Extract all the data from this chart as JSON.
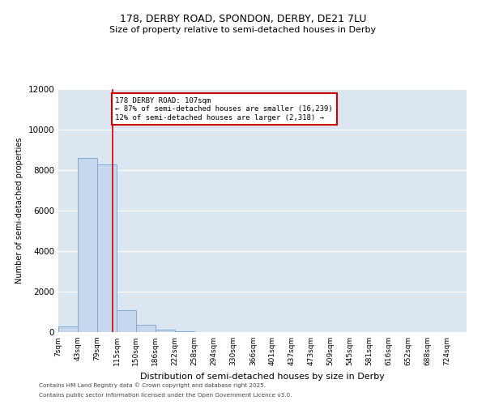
{
  "title1": "178, DERBY ROAD, SPONDON, DERBY, DE21 7LU",
  "title2": "Size of property relative to semi-detached houses in Derby",
  "xlabel": "Distribution of semi-detached houses by size in Derby",
  "ylabel": "Number of semi-detached properties",
  "footer1": "Contains HM Land Registry data © Crown copyright and database right 2025.",
  "footer2": "Contains public sector information licensed under the Open Government Licence v3.0.",
  "annotation_line1": "178 DERBY ROAD: 107sqm",
  "annotation_line2": "← 87% of semi-detached houses are smaller (16,239)",
  "annotation_line3": "12% of semi-detached houses are larger (2,318) →",
  "property_size": 107,
  "bin_labels": [
    "7sqm",
    "43sqm",
    "79sqm",
    "115sqm",
    "150sqm",
    "186sqm",
    "222sqm",
    "258sqm",
    "294sqm",
    "330sqm",
    "366sqm",
    "401sqm",
    "437sqm",
    "473sqm",
    "509sqm",
    "545sqm",
    "581sqm",
    "616sqm",
    "652sqm",
    "688sqm",
    "724sqm"
  ],
  "bin_edges": [
    7,
    43,
    79,
    115,
    150,
    186,
    222,
    258,
    294,
    330,
    366,
    401,
    437,
    473,
    509,
    545,
    581,
    616,
    652,
    688,
    724,
    760
  ],
  "bar_values": [
    300,
    8600,
    8300,
    1100,
    350,
    120,
    40,
    5,
    0,
    0,
    0,
    0,
    0,
    0,
    0,
    0,
    0,
    0,
    0,
    0,
    0
  ],
  "bar_color": "#c5d8ed",
  "bar_edge_color": "#7aadd4",
  "red_line_color": "#cc0000",
  "annotation_box_color": "#cc0000",
  "background_color": "#dce6f0",
  "ylim": [
    0,
    12000
  ],
  "yticks": [
    0,
    2000,
    4000,
    6000,
    8000,
    10000,
    12000
  ]
}
